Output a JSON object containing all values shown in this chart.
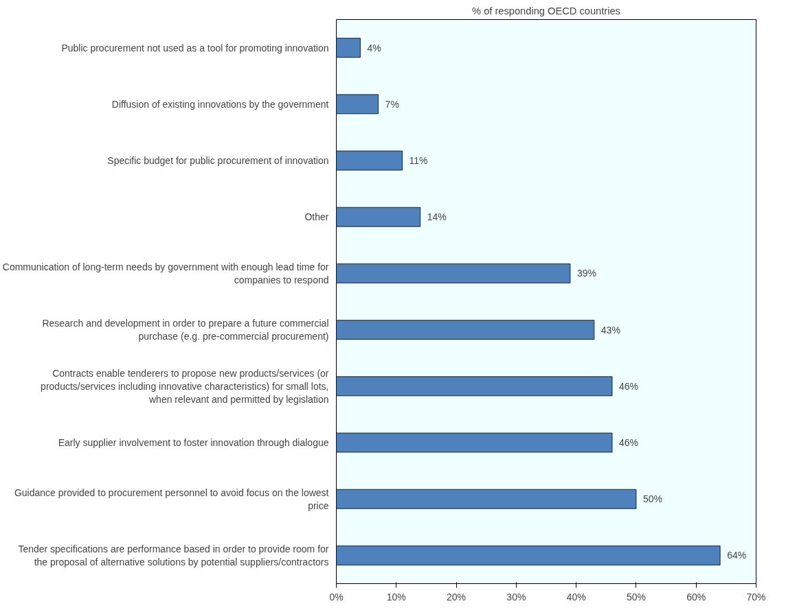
{
  "chart_data": {
    "type": "bar",
    "orientation": "horizontal",
    "title": "% of responding OECD countries",
    "categories": [
      "Public procurement not used as a tool for promoting innovation",
      "Diffusion of existing innovations by the government",
      "Specific budget for public procurement of innovation",
      "Other",
      "Communication of long-term needs by government with enough lead time for companies to respond",
      "Research and development in order to prepare a future commercial purchase (e.g. pre-commercial procurement)",
      "Contracts enable tenderers to propose new products/services (or products/services including innovative characteristics) for small lots, when relevant and permitted by legislation",
      "Early supplier involvement to foster innovation through dialogue",
      "Guidance provided to procurement personnel to avoid focus on the lowest price",
      "Tender specifications are performance based in order to provide room for the proposal of alternative solutions by potential suppliers/contractors"
    ],
    "values": [
      4,
      7,
      11,
      14,
      39,
      43,
      46,
      46,
      50,
      64
    ],
    "value_labels": [
      "4%",
      "7%",
      "11%",
      "14%",
      "39%",
      "43%",
      "46%",
      "46%",
      "50%",
      "64%"
    ],
    "color": "#4f81bd",
    "xlim": [
      0,
      70
    ],
    "xticks": [
      {
        "value": 0,
        "label": "0%"
      },
      {
        "value": 10,
        "label": "10%"
      },
      {
        "value": 20,
        "label": "20%"
      },
      {
        "value": 30,
        "label": "30%"
      },
      {
        "value": 40,
        "label": "40%"
      },
      {
        "value": 50,
        "label": "50%"
      },
      {
        "value": 60,
        "label": "60%"
      },
      {
        "value": 70,
        "label": "70%"
      }
    ],
    "grid": false
  }
}
